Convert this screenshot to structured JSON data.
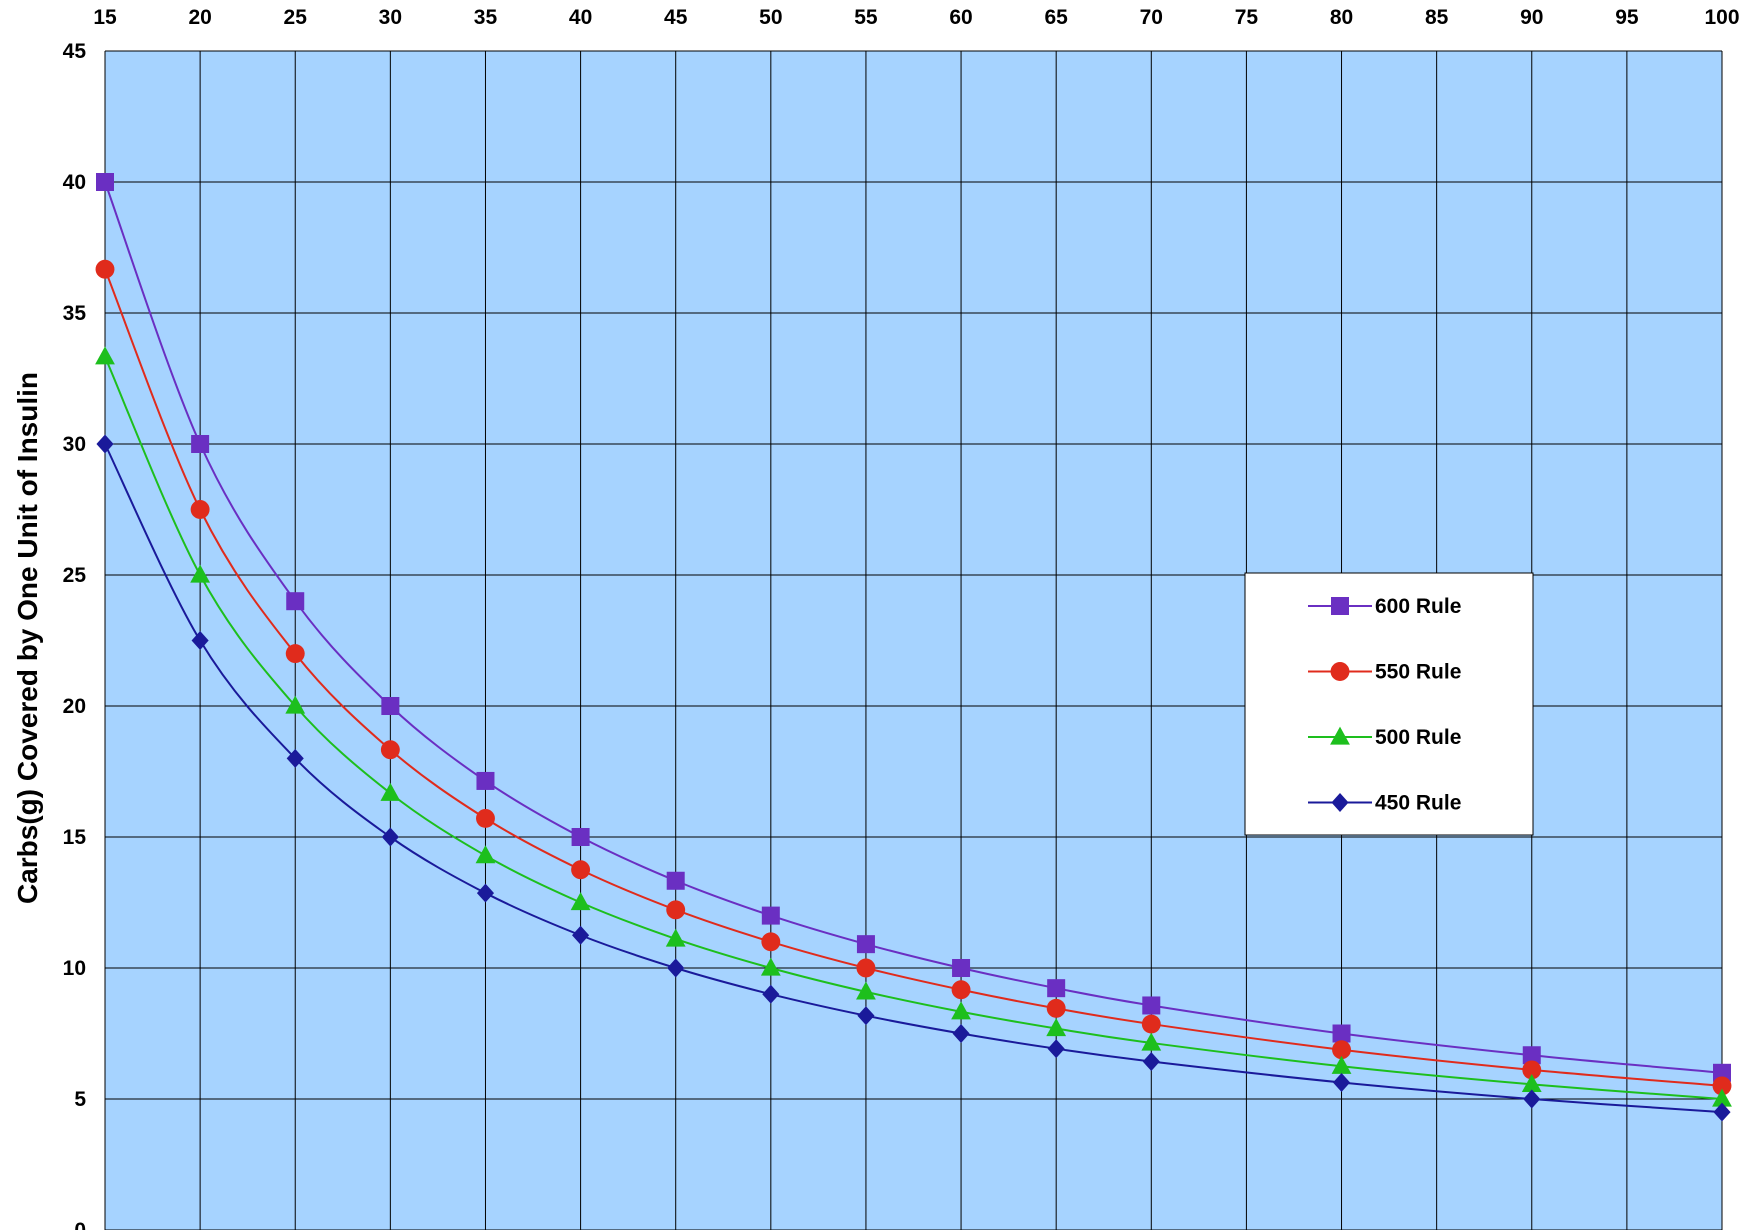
{
  "chart_data": {
    "type": "line",
    "title": "",
    "xlabel": "",
    "ylabel": "Carbs(g) Covered by One Unit of Insulin",
    "x_axis_position": "top",
    "x_ticks": [
      15,
      20,
      25,
      30,
      35,
      40,
      45,
      50,
      55,
      60,
      65,
      70,
      75,
      80,
      85,
      90,
      95,
      100
    ],
    "y_ticks": [
      0,
      5,
      10,
      15,
      20,
      25,
      30,
      35,
      40,
      45
    ],
    "xlim": [
      15,
      100
    ],
    "ylim": [
      0,
      45
    ],
    "grid": true,
    "plot_background": "#A6D3FF",
    "legend_placement": "right",
    "x": [
      15,
      20,
      25,
      30,
      35,
      40,
      45,
      50,
      55,
      60,
      65,
      70,
      80,
      90,
      100
    ],
    "series": [
      {
        "name": "600 Rule",
        "color": "#6A2FC2",
        "marker": "square",
        "values": [
          40,
          30,
          24,
          20,
          17.14,
          15,
          13.33,
          12,
          10.91,
          10,
          9.23,
          8.57,
          7.5,
          6.67,
          6
        ]
      },
      {
        "name": "550 Rule",
        "color": "#E02B1C",
        "marker": "circle",
        "values": [
          36.67,
          27.5,
          22,
          18.33,
          15.71,
          13.75,
          12.22,
          11,
          10,
          9.17,
          8.46,
          7.86,
          6.88,
          6.11,
          5.5
        ]
      },
      {
        "name": "500 Rule",
        "color": "#1DBF1D",
        "marker": "triangle",
        "values": [
          33.33,
          25,
          20,
          16.67,
          14.29,
          12.5,
          11.11,
          10,
          9.09,
          8.33,
          7.69,
          7.14,
          6.25,
          5.56,
          5
        ]
      },
      {
        "name": "450 Rule",
        "color": "#1A1A9A",
        "marker": "diamond",
        "values": [
          30,
          22.5,
          18,
          15,
          12.86,
          11.25,
          10,
          9,
          8.18,
          7.5,
          6.92,
          6.43,
          5.63,
          5,
          4.5
        ]
      }
    ]
  }
}
